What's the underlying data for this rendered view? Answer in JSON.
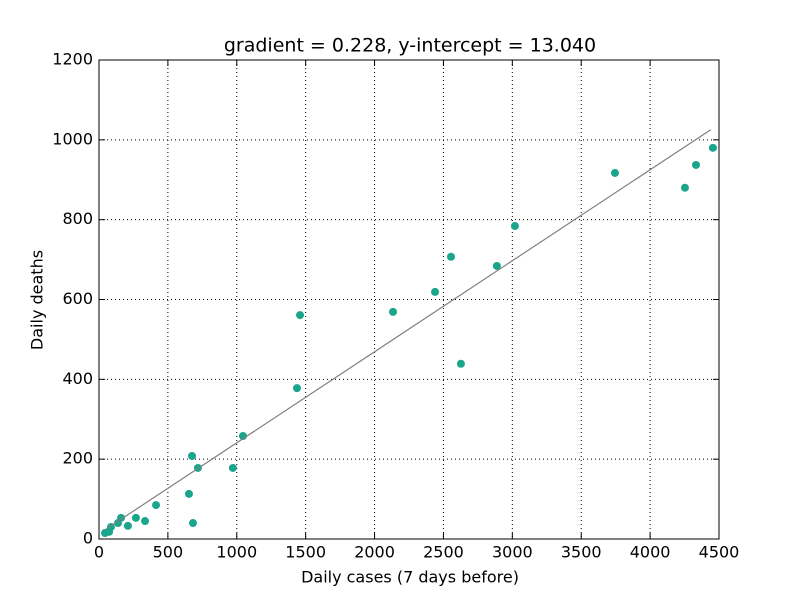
{
  "chart_data": {
    "type": "scatter",
    "title": "gradient = 0.228, y-intercept = 13.040",
    "x_label": "Daily cases (7 days before)",
    "y_label": "Daily deaths",
    "xlim": [
      0,
      4500
    ],
    "ylim": [
      0,
      1200
    ],
    "xticks": [
      0,
      500,
      1000,
      1500,
      2000,
      2500,
      3000,
      3500,
      4000,
      4500
    ],
    "yticks": [
      0,
      200,
      400,
      600,
      800,
      1000,
      1200
    ],
    "grid": true,
    "series": [
      {
        "type": "scatter",
        "color": "#1aa58c",
        "x": [
          44,
          73,
          87,
          138,
          160,
          210,
          268,
          334,
          414,
          653,
          675,
          682,
          718,
          972,
          1045,
          1437,
          1459,
          2134,
          2439,
          2555,
          2627,
          2888,
          3019,
          3745,
          4253,
          4333,
          4456
        ],
        "values": [
          15,
          18,
          30,
          40,
          53,
          33,
          53,
          45,
          85,
          113,
          208,
          40,
          178,
          178,
          258,
          378,
          561,
          569,
          619,
          707,
          439,
          684,
          784,
          917,
          880,
          937,
          980
        ]
      },
      {
        "type": "line",
        "color": "#808080",
        "x": [
          50,
          4440
        ],
        "values": [
          24.4,
          1025.4
        ]
      }
    ]
  }
}
